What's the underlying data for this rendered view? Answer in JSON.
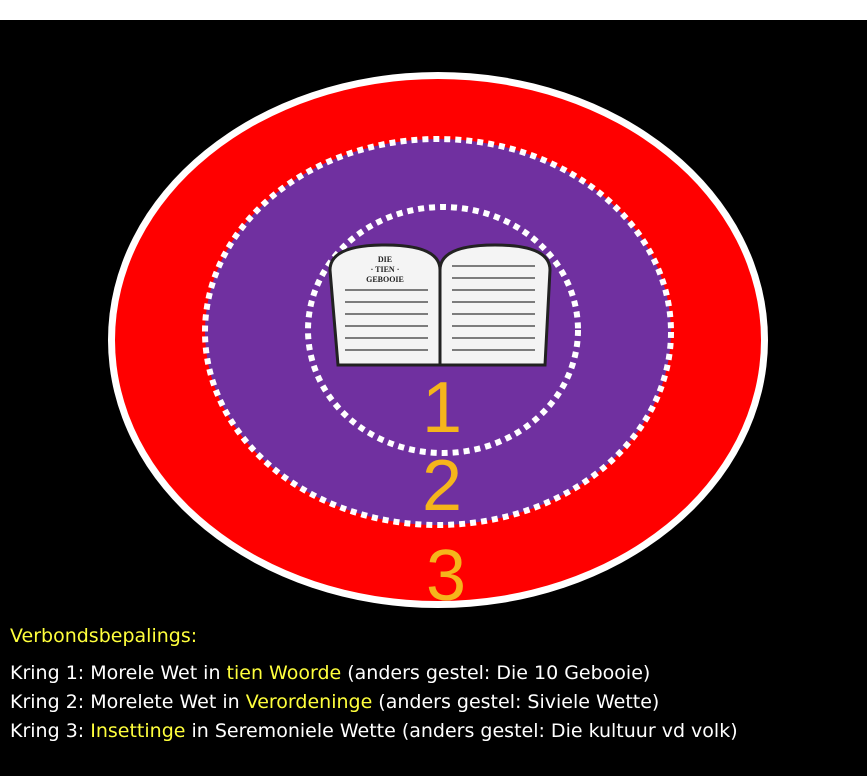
{
  "tablets": [
    "DIE",
    "· TIEN ·",
    "GEBOOIE"
  ],
  "rings": [
    "1",
    "2",
    "3"
  ],
  "legend": {
    "title": "Verbondsbepalings:",
    "lines": [
      {
        "before": "Kring 1: Morele Wet in ",
        "highlight": "tien Woorde",
        "after": " (anders gestel: Die 10 Gebooie)"
      },
      {
        "before": "Kring 2: Morelete Wet in ",
        "highlight": "Verordeninge",
        "after": " (anders gestel: Siviele Wette)"
      },
      {
        "before": "Kring 3: ",
        "highlight": "Insettinge",
        "after": " in Seremoniele Wette (anders gestel: Die kultuur vd volk)"
      }
    ]
  }
}
